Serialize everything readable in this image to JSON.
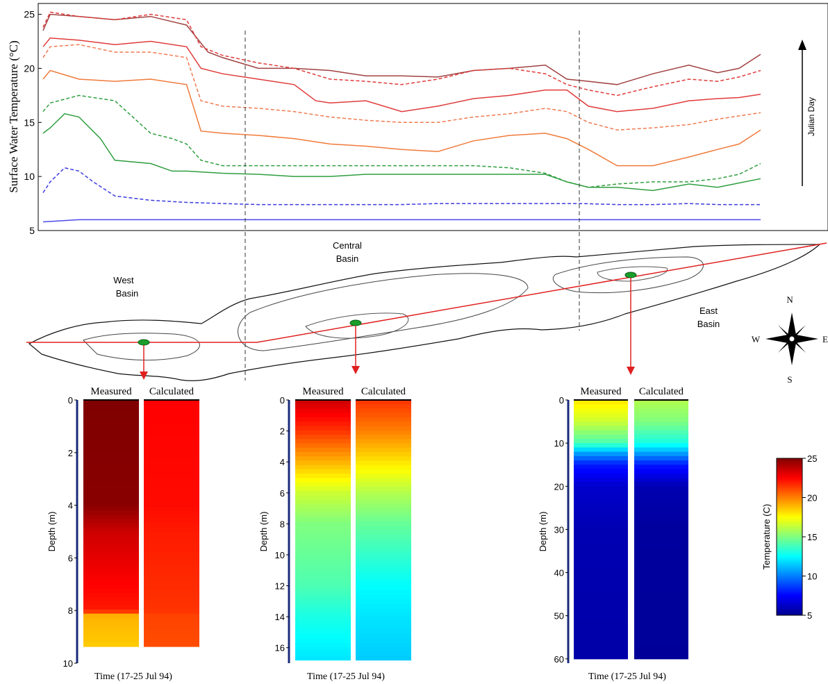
{
  "chart_data": [
    {
      "type": "line",
      "ylabel": "Surface Water Temperature (°C)",
      "annotation": "Julian Day",
      "ylim": [
        5,
        26
      ],
      "yticks": [
        5,
        10,
        15,
        20,
        25
      ],
      "grid": false,
      "x_unit": "fraction of lake length (west to east)",
      "series": [
        {
          "color": "#a04040",
          "dash": false,
          "x": [
            0,
            0.01,
            0.05,
            0.1,
            0.15,
            0.2,
            0.23,
            0.25,
            0.3,
            0.35,
            0.4,
            0.45,
            0.5,
            0.55,
            0.6,
            0.65,
            0.7,
            0.73,
            0.76,
            0.8,
            0.85,
            0.9,
            0.94,
            0.97,
            1.0
          ],
          "y": [
            23.5,
            25.0,
            24.8,
            24.5,
            24.8,
            24.0,
            21.5,
            21.0,
            20.0,
            20.0,
            19.8,
            19.3,
            19.3,
            19.2,
            19.8,
            20.0,
            20.3,
            19.0,
            18.8,
            18.5,
            19.5,
            20.3,
            19.6,
            20.0,
            21.3
          ]
        },
        {
          "color": "#e03a3a",
          "dash": true,
          "x": [
            0,
            0.01,
            0.05,
            0.1,
            0.15,
            0.2,
            0.22,
            0.25,
            0.3,
            0.35,
            0.4,
            0.45,
            0.5,
            0.55,
            0.6,
            0.65,
            0.7,
            0.73,
            0.76,
            0.8,
            0.85,
            0.9,
            0.94,
            0.97,
            1.0
          ],
          "y": [
            23.8,
            25.2,
            24.8,
            24.5,
            25.0,
            24.5,
            22.0,
            21.2,
            20.5,
            20.0,
            19.0,
            18.8,
            18.5,
            19.0,
            19.8,
            20.0,
            19.5,
            18.5,
            18.0,
            17.5,
            18.3,
            19.0,
            18.8,
            19.2,
            19.8
          ]
        },
        {
          "color": "#e03a3a",
          "dash": false,
          "x": [
            0,
            0.01,
            0.05,
            0.1,
            0.15,
            0.2,
            0.22,
            0.25,
            0.3,
            0.35,
            0.38,
            0.4,
            0.45,
            0.5,
            0.55,
            0.6,
            0.65,
            0.7,
            0.73,
            0.76,
            0.8,
            0.85,
            0.9,
            0.94,
            0.97,
            1.0
          ],
          "y": [
            22.0,
            22.8,
            22.6,
            22.2,
            22.5,
            22.0,
            20.0,
            19.5,
            19.0,
            18.5,
            17.0,
            16.8,
            17.0,
            16.0,
            16.5,
            17.2,
            17.5,
            18.0,
            18.0,
            16.5,
            16.0,
            16.3,
            17.0,
            17.2,
            17.3,
            17.6
          ]
        },
        {
          "color": "#f07a50",
          "dash": true,
          "x": [
            0,
            0.01,
            0.05,
            0.1,
            0.15,
            0.2,
            0.22,
            0.25,
            0.3,
            0.35,
            0.4,
            0.45,
            0.5,
            0.55,
            0.6,
            0.65,
            0.7,
            0.73,
            0.76,
            0.8,
            0.85,
            0.9,
            0.94,
            0.97,
            1.0
          ],
          "y": [
            21.0,
            22.0,
            22.2,
            21.5,
            21.5,
            21.0,
            17.0,
            16.5,
            16.3,
            16.0,
            15.5,
            15.2,
            15.0,
            15.0,
            15.5,
            15.8,
            16.3,
            16.0,
            15.0,
            14.3,
            14.5,
            14.8,
            15.3,
            15.6,
            15.9
          ]
        },
        {
          "color": "#f07a3a",
          "dash": false,
          "x": [
            0,
            0.01,
            0.05,
            0.1,
            0.15,
            0.2,
            0.22,
            0.25,
            0.3,
            0.35,
            0.4,
            0.45,
            0.5,
            0.55,
            0.6,
            0.65,
            0.7,
            0.73,
            0.76,
            0.8,
            0.85,
            0.9,
            0.94,
            0.97,
            1.0
          ],
          "y": [
            19.0,
            19.8,
            19.0,
            18.8,
            19.0,
            18.5,
            14.2,
            14.0,
            13.8,
            13.5,
            13.0,
            12.8,
            12.5,
            12.3,
            13.3,
            13.8,
            14.0,
            13.5,
            12.5,
            11.0,
            11.0,
            11.8,
            12.5,
            13.0,
            14.3
          ]
        },
        {
          "color": "#2e9e3e",
          "dash": true,
          "x": [
            0,
            0.01,
            0.05,
            0.1,
            0.15,
            0.18,
            0.2,
            0.22,
            0.25,
            0.3,
            0.35,
            0.4,
            0.45,
            0.5,
            0.55,
            0.6,
            0.65,
            0.7,
            0.73,
            0.76,
            0.8,
            0.85,
            0.9,
            0.94,
            0.97,
            1.0
          ],
          "y": [
            16.0,
            16.8,
            17.5,
            17.0,
            14.0,
            13.5,
            13.0,
            11.5,
            11.0,
            11.0,
            11.0,
            11.0,
            11.0,
            11.0,
            11.0,
            11.0,
            10.8,
            10.3,
            9.5,
            9.0,
            9.3,
            9.5,
            9.5,
            9.8,
            10.2,
            11.2
          ]
        },
        {
          "color": "#2e9e3e",
          "dash": false,
          "x": [
            0,
            0.01,
            0.03,
            0.05,
            0.08,
            0.1,
            0.15,
            0.18,
            0.2,
            0.25,
            0.3,
            0.35,
            0.4,
            0.45,
            0.5,
            0.55,
            0.6,
            0.65,
            0.7,
            0.73,
            0.76,
            0.8,
            0.85,
            0.9,
            0.94,
            0.97,
            1.0
          ],
          "y": [
            14.0,
            14.5,
            15.8,
            15.5,
            13.5,
            11.5,
            11.2,
            10.5,
            10.5,
            10.3,
            10.2,
            10.0,
            10.0,
            10.2,
            10.2,
            10.2,
            10.2,
            10.2,
            10.2,
            9.5,
            9.0,
            9.0,
            8.7,
            9.3,
            9.0,
            9.4,
            9.8
          ]
        },
        {
          "color": "#3a3ae0",
          "dash": true,
          "x": [
            0,
            0.01,
            0.03,
            0.05,
            0.07,
            0.1,
            0.15,
            0.2,
            0.25,
            0.3,
            0.35,
            0.4,
            0.45,
            0.5,
            0.55,
            0.6,
            0.65,
            0.7,
            0.75,
            0.8,
            0.85,
            0.9,
            0.94,
            0.97,
            1.0
          ],
          "y": [
            8.5,
            9.5,
            10.8,
            10.5,
            9.5,
            8.2,
            7.8,
            7.6,
            7.5,
            7.4,
            7.4,
            7.4,
            7.4,
            7.4,
            7.5,
            7.5,
            7.5,
            7.5,
            7.5,
            7.4,
            7.4,
            7.5,
            7.4,
            7.4,
            7.4
          ]
        },
        {
          "color": "#4a4af0",
          "dash": false,
          "x": [
            0,
            0.05,
            0.1,
            0.2,
            0.3,
            0.4,
            0.5,
            0.6,
            0.7,
            0.8,
            0.9,
            1.0
          ],
          "y": [
            5.8,
            6.0,
            6.0,
            6.0,
            6.0,
            6.0,
            6.0,
            6.0,
            6.0,
            6.0,
            6.0,
            6.0
          ]
        }
      ]
    },
    {
      "type": "heatmap",
      "location": "West Basin",
      "panels": [
        "Measured",
        "Calculated"
      ],
      "ylabel": "Depth (m)",
      "xlabel": "Time (17-25 Jul 94)",
      "ylim": [
        0,
        10
      ],
      "yticks": [
        0,
        2,
        4,
        6,
        8,
        10
      ],
      "profile_depths": [
        0,
        4,
        5,
        8,
        8.2,
        9.4
      ],
      "measured_temp": [
        25.0,
        24.8,
        23.5,
        22.0,
        19.0,
        18.5
      ],
      "calculated_temp": [
        22.5,
        22.3,
        22.0,
        21.5,
        21.2,
        21.0
      ]
    },
    {
      "type": "heatmap",
      "location": "Central Basin",
      "panels": [
        "Measured",
        "Calculated"
      ],
      "ylabel": "Depth (m)",
      "xlabel": "Time (17-25 Jul 94)",
      "ylim": [
        0,
        17
      ],
      "yticks": [
        0,
        2,
        4,
        6,
        8,
        10,
        12,
        14,
        16
      ],
      "profile_depths": [
        0,
        2,
        4,
        6,
        8,
        10,
        12,
        14,
        16.8
      ],
      "measured_temp": [
        23.5,
        21.5,
        19.0,
        16.5,
        15.0,
        14.5,
        14.0,
        13.0,
        12.0
      ],
      "calculated_temp": [
        21.5,
        20.0,
        18.0,
        16.0,
        14.5,
        13.5,
        12.5,
        12.0,
        11.5
      ]
    },
    {
      "type": "heatmap",
      "location": "East Basin",
      "panels": [
        "Measured",
        "Calculated"
      ],
      "ylabel": "Depth (m)",
      "xlabel": "Time (17-25 Jul 94)",
      "ylim": [
        0,
        61
      ],
      "yticks": [
        0,
        10,
        20,
        30,
        40,
        50,
        60
      ],
      "profile_depths": [
        0,
        5,
        10,
        12,
        15,
        20,
        30,
        60
      ],
      "measured_temp": [
        18.0,
        16.5,
        14.0,
        11.0,
        8.0,
        6.5,
        6.0,
        5.8
      ],
      "calculated_temp": [
        16.0,
        15.0,
        13.0,
        11.0,
        8.0,
        6.0,
        5.6,
        5.5
      ]
    }
  ],
  "colorbar": {
    "label": "Temperature (C)",
    "range": [
      5,
      25
    ],
    "ticks": [
      5,
      10,
      15,
      20,
      25
    ]
  },
  "map": {
    "labels": {
      "west": "West Basin",
      "central": "Central Basin",
      "east": "East Basin"
    },
    "compass": {
      "n": "N",
      "s": "S",
      "e": "E",
      "w": "W"
    }
  }
}
